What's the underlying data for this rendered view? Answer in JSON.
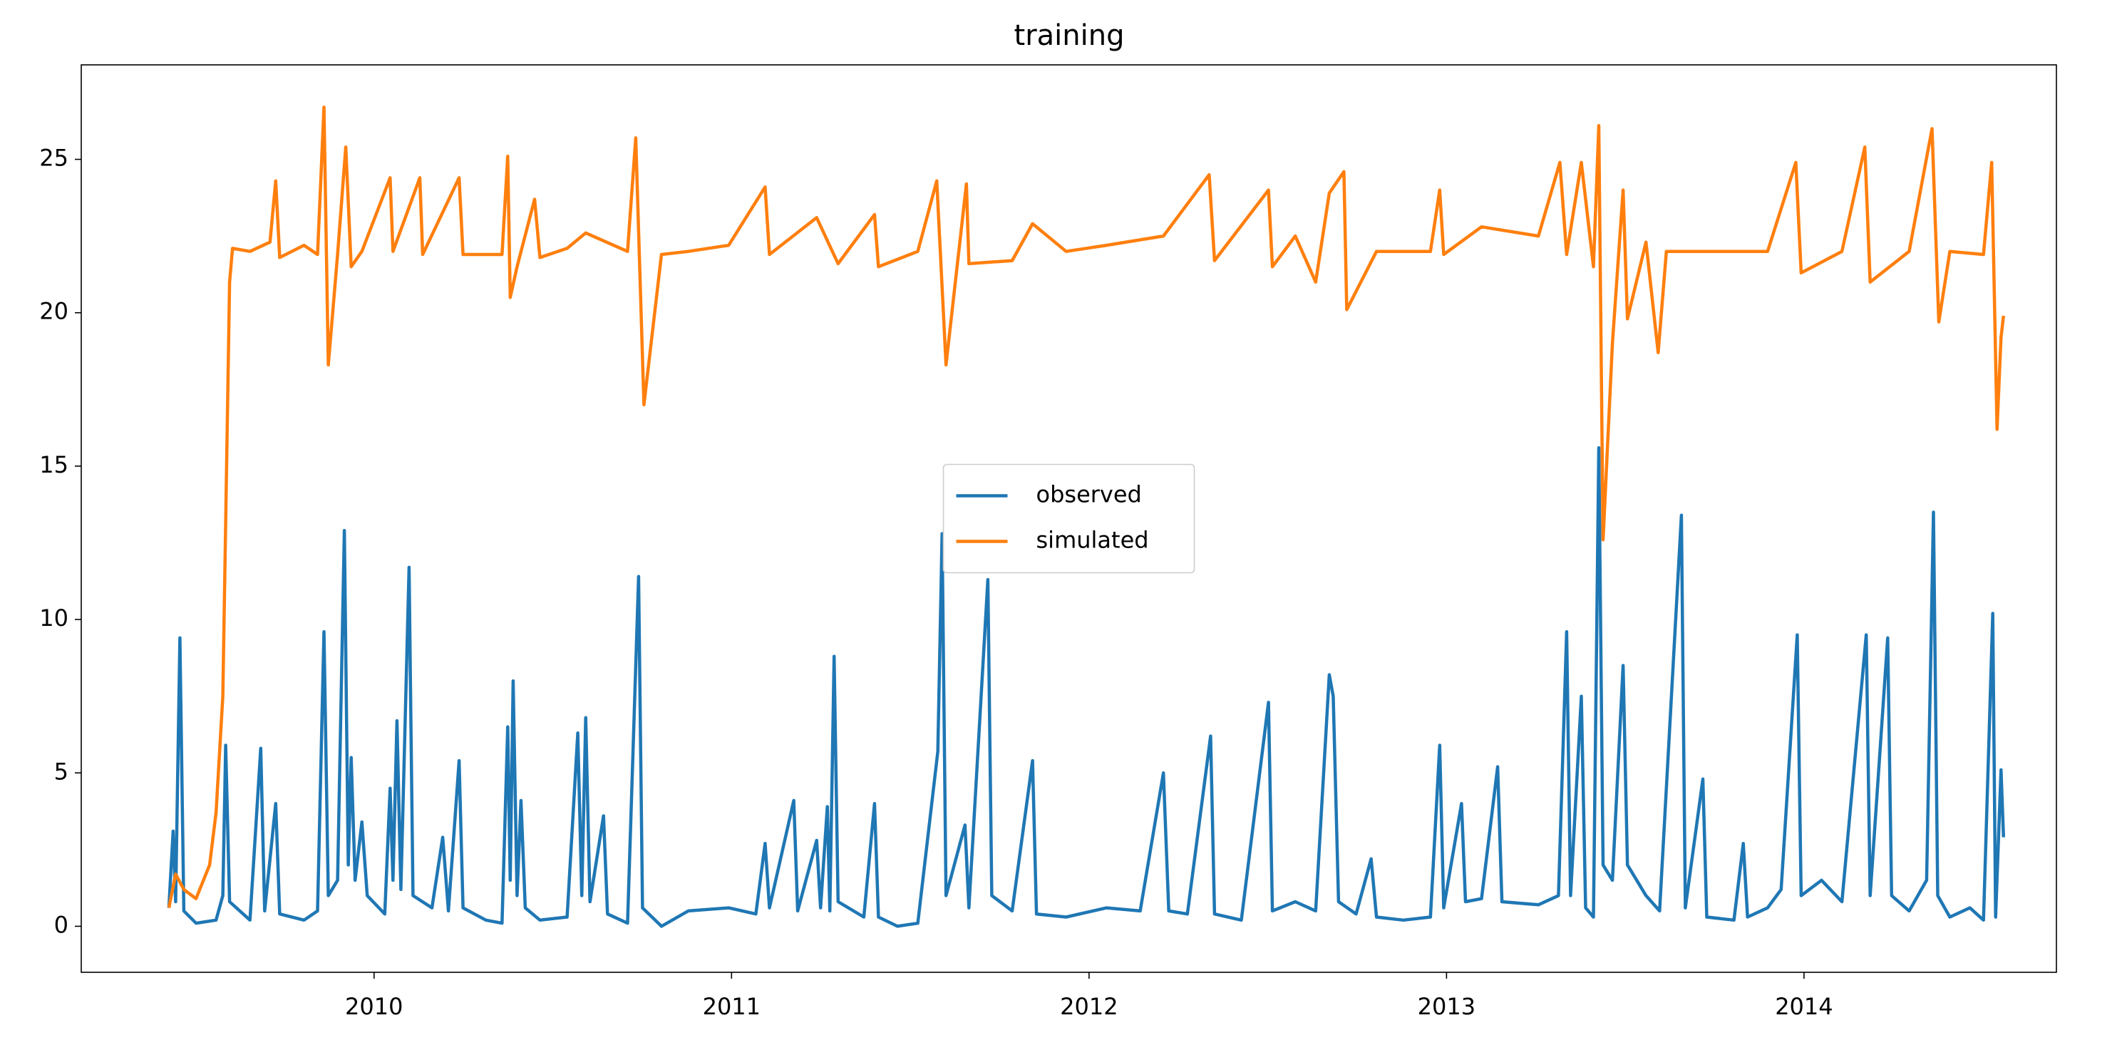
{
  "chart_data": {
    "type": "line",
    "title": "training",
    "xlim": [
      2009.181,
      2014.706
    ],
    "xticks": [
      2010,
      2011,
      2012,
      2013,
      2014
    ],
    "ylim": [
      -1.5,
      28.08
    ],
    "yticks": [
      0,
      5,
      10,
      15,
      20,
      25
    ],
    "legend": "center",
    "series": [
      {
        "name": "observed",
        "color": "#1f77b4",
        "x": [
          2009.426,
          2009.438,
          2009.445,
          2009.457,
          2009.468,
          2009.502,
          2009.558,
          2009.577,
          2009.585,
          2009.596,
          2009.653,
          2009.683,
          2009.694,
          2009.725,
          2009.736,
          2009.804,
          2009.842,
          2009.86,
          2009.872,
          2009.898,
          2009.917,
          2009.928,
          2009.936,
          2009.947,
          2009.966,
          2009.981,
          2010.03,
          2010.045,
          2010.053,
          2010.064,
          2010.075,
          2010.098,
          2010.109,
          2010.162,
          2010.192,
          2010.208,
          2010.238,
          2010.249,
          2010.313,
          2010.358,
          2010.374,
          2010.381,
          2010.389,
          2010.4,
          2010.411,
          2010.423,
          2010.464,
          2010.54,
          2010.57,
          2010.581,
          2010.592,
          2010.604,
          2010.642,
          2010.653,
          2010.709,
          2010.74,
          2010.751,
          2010.804,
          2010.879,
          2010.992,
          2011.068,
          2011.094,
          2011.106,
          2011.174,
          2011.185,
          2011.238,
          2011.249,
          2011.268,
          2011.275,
          2011.287,
          2011.298,
          2011.37,
          2011.4,
          2011.411,
          2011.464,
          2011.521,
          2011.577,
          2011.589,
          2011.6,
          2011.653,
          2011.664,
          2011.717,
          2011.728,
          2011.785,
          2011.842,
          2011.853,
          2011.936,
          2012.049,
          2012.143,
          2012.208,
          2012.223,
          2012.275,
          2012.34,
          2012.351,
          2012.426,
          2012.502,
          2012.513,
          2012.577,
          2012.634,
          2012.672,
          2012.683,
          2012.698,
          2012.747,
          2012.789,
          2012.804,
          2012.879,
          2012.955,
          2012.981,
          2012.992,
          2013.042,
          2013.053,
          2013.098,
          2013.143,
          2013.155,
          2013.257,
          2013.313,
          2013.336,
          2013.347,
          2013.377,
          2013.389,
          2013.411,
          2013.426,
          2013.438,
          2013.464,
          2013.494,
          2013.506,
          2013.558,
          2013.596,
          2013.657,
          2013.668,
          2013.717,
          2013.728,
          2013.804,
          2013.83,
          2013.842,
          2013.898,
          2013.936,
          2013.981,
          2013.992,
          2014.049,
          2014.106,
          2014.174,
          2014.185,
          2014.234,
          2014.245,
          2014.294,
          2014.343,
          2014.362,
          2014.374,
          2014.408,
          2014.464,
          2014.502,
          2014.528,
          2014.536,
          2014.551,
          2014.558
        ],
        "values": [
          0.6,
          3.1,
          0.8,
          9.4,
          0.5,
          0.1,
          0.2,
          1.0,
          5.9,
          0.8,
          0.2,
          5.8,
          0.5,
          4.0,
          0.4,
          0.2,
          0.5,
          9.6,
          1.0,
          1.5,
          12.9,
          2.0,
          5.5,
          1.5,
          3.4,
          1.0,
          0.4,
          4.5,
          1.5,
          6.7,
          1.2,
          11.7,
          1.0,
          0.6,
          2.9,
          0.5,
          5.4,
          0.6,
          0.2,
          0.1,
          6.5,
          1.5,
          8.0,
          1.0,
          4.1,
          0.6,
          0.2,
          0.3,
          6.3,
          1.0,
          6.8,
          0.8,
          3.6,
          0.4,
          0.1,
          11.4,
          0.6,
          0.0,
          0.5,
          0.6,
          0.4,
          2.7,
          0.6,
          4.1,
          0.5,
          2.8,
          0.6,
          3.9,
          0.5,
          8.8,
          0.8,
          0.3,
          4.0,
          0.3,
          0.0,
          0.1,
          5.7,
          12.8,
          1.0,
          3.3,
          0.6,
          11.3,
          1.0,
          0.5,
          5.4,
          0.4,
          0.3,
          0.6,
          0.5,
          5.0,
          0.5,
          0.4,
          6.2,
          0.4,
          0.2,
          7.3,
          0.5,
          0.8,
          0.5,
          8.2,
          7.5,
          0.8,
          0.4,
          2.2,
          0.3,
          0.2,
          0.3,
          5.9,
          0.6,
          4.0,
          0.8,
          0.9,
          5.2,
          0.8,
          0.7,
          1.0,
          9.6,
          1.0,
          7.5,
          0.6,
          0.3,
          15.6,
          2.0,
          1.5,
          8.5,
          2.0,
          1.0,
          0.5,
          13.4,
          0.6,
          4.8,
          0.3,
          0.2,
          2.7,
          0.3,
          0.6,
          1.2,
          9.5,
          1.0,
          1.5,
          0.8,
          9.5,
          1.0,
          9.4,
          1.0,
          0.5,
          1.5,
          13.5,
          1.0,
          0.3,
          0.6,
          0.2,
          10.2,
          0.3,
          5.1,
          2.9
        ]
      },
      {
        "name": "simulated",
        "color": "#ff7f0e",
        "x": [
          2009.426,
          2009.445,
          2009.468,
          2009.502,
          2009.54,
          2009.558,
          2009.577,
          2009.589,
          2009.596,
          2009.604,
          2009.653,
          2009.709,
          2009.725,
          2009.736,
          2009.804,
          2009.842,
          2009.86,
          2009.872,
          2009.898,
          2009.921,
          2009.936,
          2009.966,
          2010.045,
          2010.053,
          2010.128,
          2010.136,
          2010.238,
          2010.249,
          2010.358,
          2010.374,
          2010.381,
          2010.4,
          2010.449,
          2010.464,
          2010.54,
          2010.592,
          2010.709,
          2010.732,
          2010.755,
          2010.804,
          2010.879,
          2010.992,
          2011.094,
          2011.106,
          2011.238,
          2011.298,
          2011.4,
          2011.411,
          2011.521,
          2011.574,
          2011.6,
          2011.657,
          2011.664,
          2011.785,
          2011.842,
          2011.936,
          2012.049,
          2012.208,
          2012.336,
          2012.351,
          2012.502,
          2012.513,
          2012.577,
          2012.634,
          2012.672,
          2012.713,
          2012.721,
          2012.804,
          2012.955,
          2012.981,
          2012.992,
          2013.098,
          2013.257,
          2013.317,
          2013.336,
          2013.377,
          2013.411,
          2013.426,
          2013.438,
          2013.464,
          2013.494,
          2013.506,
          2013.558,
          2013.592,
          2013.615,
          2013.717,
          2013.898,
          2013.977,
          2013.992,
          2014.106,
          2014.17,
          2014.185,
          2014.294,
          2014.358,
          2014.377,
          2014.408,
          2014.502,
          2014.525,
          2014.54,
          2014.551,
          2014.558
        ],
        "values": [
          0.6,
          1.7,
          1.2,
          0.9,
          2.0,
          3.7,
          7.5,
          16,
          21,
          22.1,
          22.0,
          22.3,
          24.3,
          21.8,
          22.2,
          21.9,
          26.7,
          18.3,
          21.9,
          25.4,
          21.5,
          22.0,
          24.4,
          22.0,
          24.4,
          21.9,
          24.4,
          21.9,
          21.9,
          25.1,
          20.5,
          21.5,
          23.7,
          21.8,
          22.1,
          22.6,
          22.0,
          25.7,
          17.0,
          21.9,
          22.0,
          22.2,
          24.1,
          21.9,
          23.1,
          21.6,
          23.2,
          21.5,
          22.0,
          24.3,
          18.3,
          24.2,
          21.6,
          21.7,
          22.9,
          22.0,
          22.2,
          22.5,
          24.5,
          21.7,
          24.0,
          21.5,
          22.5,
          21.0,
          23.9,
          24.6,
          20.1,
          22.0,
          22.0,
          24.0,
          21.9,
          22.8,
          22.5,
          24.9,
          21.9,
          24.9,
          21.5,
          26.1,
          12.6,
          19.0,
          24.0,
          19.8,
          22.3,
          18.7,
          22.0,
          22.0,
          22.0,
          24.9,
          21.3,
          22.0,
          25.4,
          21.0,
          22.0,
          26.0,
          19.7,
          22.0,
          21.9,
          24.9,
          16.2,
          19.2,
          19.9
        ]
      }
    ]
  }
}
